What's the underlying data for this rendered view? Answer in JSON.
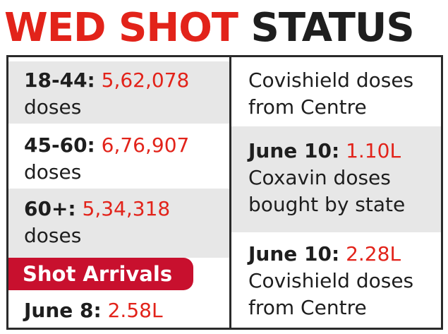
{
  "title": {
    "part1": "WED SHOT",
    "part2": "STATUS"
  },
  "left": {
    "rows": [
      {
        "label": "18-44:",
        "value": "5,62,078",
        "unit": "doses"
      },
      {
        "label": "45-60:",
        "value": "6,76,907",
        "unit": "doses"
      },
      {
        "label": "60+:",
        "value": "5,34,318",
        "unit": "doses"
      }
    ],
    "banner": "Shot Arrivals",
    "arrival": {
      "label": "June 8:",
      "value": "2.58L"
    }
  },
  "right": {
    "top_line1": "Covishield doses",
    "top_line2": "from Centre",
    "mid": {
      "label": "June 10:",
      "value": "1.10L",
      "line2": "Coxavin doses",
      "line3": "bought by state"
    },
    "bottom": {
      "label": "June 10:",
      "value": "2.28L",
      "line2": "Covishield doses",
      "line3": "from Centre"
    }
  },
  "colors": {
    "accent_red": "#e2231a",
    "banner_red": "#c8102e",
    "text": "#1e1e1e",
    "grey_fill": "#e7e7e7"
  }
}
